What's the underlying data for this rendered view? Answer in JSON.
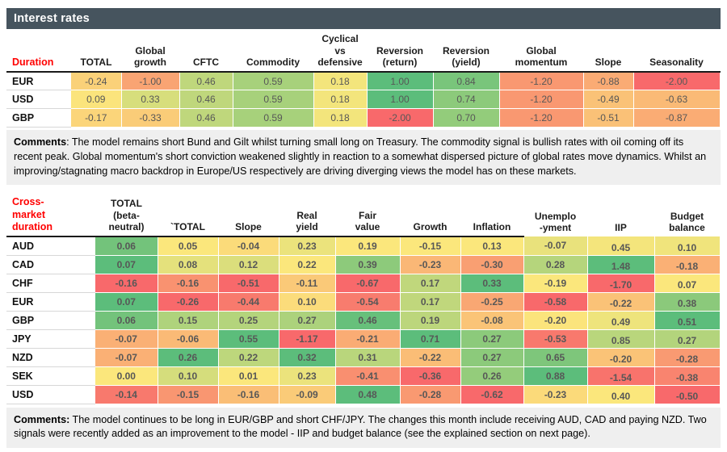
{
  "title_bar": {
    "label": "Interest rates",
    "bg": "#46545E"
  },
  "colors": {
    "scale_min_red": "#F8696B",
    "scale_mid_yellow": "#FBE77C",
    "scale_max_green": "#5CBD7B",
    "corner_label_red": "#FF0000",
    "header_bar_bg": "#46545E"
  },
  "table1": {
    "corner_label": "Duration",
    "color_scale": "table",
    "columns": [
      "TOTAL",
      "Global\ngrowth",
      "CFTC",
      "Commodity",
      "Cyclical\nvs\ndefensive",
      "Reversion\n(return)",
      "Reversion\n(yield)",
      "Global\nmomentum",
      "Slope",
      "Seasonality"
    ],
    "rows": [
      {
        "label": "EUR",
        "values": [
          -0.24,
          -1.0,
          0.46,
          0.59,
          0.18,
          1.0,
          0.84,
          -1.2,
          -0.88,
          -2.0
        ]
      },
      {
        "label": "USD",
        "values": [
          0.09,
          0.33,
          0.46,
          0.59,
          0.18,
          1.0,
          0.74,
          -1.2,
          -0.49,
          -0.63
        ]
      },
      {
        "label": "GBP",
        "values": [
          -0.17,
          -0.33,
          0.46,
          0.59,
          0.18,
          -2.0,
          0.7,
          -1.2,
          -0.51,
          -0.87
        ]
      }
    ]
  },
  "comments1": {
    "label": "Comments",
    "text": ": The model remains short Bund and Gilt whilst turning small long on Treasury. The commodity signal is bullish rates with oil coming off its recent peak. Global momentum's short conviction weakened slightly in reaction to a somewhat dispersed picture of global rates move dynamics. Whilst an improving/stagnating macro backdrop in Europe/US respectively are driving diverging views the model has on these markets."
  },
  "table2": {
    "corner_label": "Cross-\nmarket\nduration",
    "color_scale": "column",
    "columns": [
      "TOTAL\n(beta-\nneutral)",
      "`TOTAL",
      "Slope",
      "Real\nyield",
      "Fair\nvalue",
      "Growth",
      "Inflation",
      "Unemplo\n-yment",
      "IIP",
      "Budget\nbalance"
    ],
    "rows": [
      {
        "label": "AUD",
        "values": [
          0.06,
          0.05,
          -0.04,
          0.23,
          0.19,
          -0.15,
          0.13,
          -0.07,
          0.45,
          0.1
        ]
      },
      {
        "label": "CAD",
        "values": [
          0.07,
          0.08,
          0.12,
          0.22,
          0.39,
          -0.23,
          -0.3,
          0.28,
          1.48,
          -0.18
        ]
      },
      {
        "label": "CHF",
        "values": [
          -0.16,
          -0.16,
          -0.51,
          -0.11,
          -0.67,
          0.17,
          0.33,
          -0.19,
          -1.7,
          0.07
        ]
      },
      {
        "label": "EUR",
        "values": [
          0.07,
          -0.26,
          -0.44,
          0.1,
          -0.54,
          0.17,
          -0.25,
          -0.58,
          -0.22,
          0.38
        ]
      },
      {
        "label": "GBP",
        "values": [
          0.06,
          0.15,
          0.25,
          0.27,
          0.46,
          0.19,
          -0.08,
          -0.2,
          0.49,
          0.51
        ]
      },
      {
        "label": "JPY",
        "values": [
          -0.07,
          -0.06,
          0.55,
          -1.17,
          -0.21,
          0.71,
          0.27,
          -0.53,
          0.85,
          0.27
        ]
      },
      {
        "label": "NZD",
        "values": [
          -0.07,
          0.26,
          0.22,
          0.32,
          0.31,
          -0.22,
          0.27,
          0.65,
          -0.2,
          -0.28
        ]
      },
      {
        "label": "SEK",
        "values": [
          0.0,
          0.1,
          0.01,
          0.23,
          -0.41,
          -0.36,
          0.26,
          0.88,
          -1.54,
          -0.38
        ]
      },
      {
        "label": "USD",
        "values": [
          -0.14,
          -0.15,
          -0.16,
          -0.09,
          0.48,
          -0.28,
          -0.62,
          -0.23,
          0.4,
          -0.5
        ]
      }
    ]
  },
  "comments2": {
    "label": "Comments:",
    "text": " The model continues to be long in EUR/GBP and short CHF/JPY. The changes this month include receiving AUD, CAD and paying NZD. Two signals were recently added as an improvement to the model - IIP and budget balance (see the explained section on next page)."
  }
}
